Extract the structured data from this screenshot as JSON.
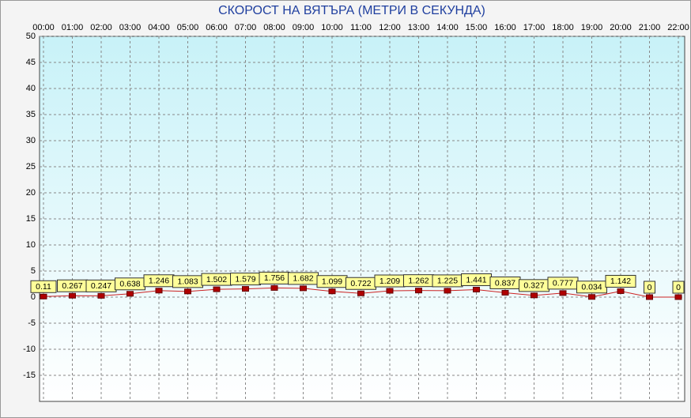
{
  "chart_data": {
    "type": "line",
    "title": "СКОРОСТ НА ВЯТЪРА (МЕТРИ В СЕКУНДА)",
    "categories": [
      "00:00",
      "01:00",
      "02:00",
      "03:00",
      "04:00",
      "05:00",
      "06:00",
      "07:00",
      "08:00",
      "09:00",
      "10:00",
      "11:00",
      "12:00",
      "13:00",
      "14:00",
      "15:00",
      "16:00",
      "17:00",
      "18:00",
      "19:00",
      "20:00",
      "21:00",
      "22:00"
    ],
    "series": [
      {
        "color": "#cc2222",
        "values": [
          0.11,
          0.267,
          0.247,
          0.638,
          1.246,
          1.083,
          1.502,
          1.579,
          1.756,
          1.682,
          1.099,
          0.722,
          1.209,
          1.262,
          1.225,
          1.441,
          0.837,
          0.327,
          0.777,
          0.034,
          1.142,
          0,
          0
        ]
      }
    ],
    "ylim": [
      -20,
      50
    ],
    "yticks": [
      50,
      45,
      40,
      35,
      30,
      25,
      20,
      15,
      10,
      5,
      0,
      -5,
      -10,
      -15
    ],
    "grid": true
  }
}
